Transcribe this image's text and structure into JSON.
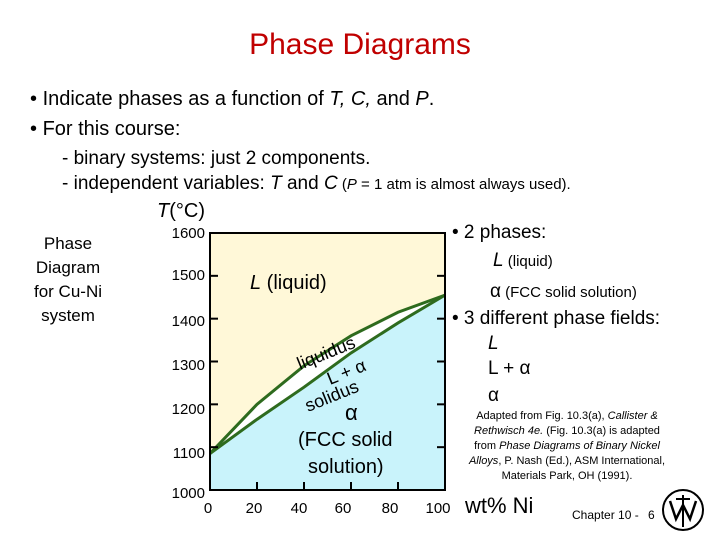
{
  "title": "Phase Diagrams",
  "bullets": [
    {
      "text_before": "Indicate phases as a function of ",
      "vars": "T, C,",
      "text_mid": " and ",
      "var_last": "P",
      "text_after": "."
    },
    {
      "text": "For this course:"
    }
  ],
  "sub1": "- binary systems:  just 2 components.",
  "sub2": {
    "prefix": "- independent variables:  ",
    "v1": "T",
    "mid": " and  ",
    "v2": "C",
    "note_open": "  (",
    "note_var": "P",
    "note_rest": " = 1 atm is almost always used)."
  },
  "side_label": [
    "Phase",
    "Diagram",
    "for Cu-Ni",
    "system"
  ],
  "y_axis_label": {
    "var": "T",
    "unit": "(°C)"
  },
  "y_ticks": [
    "1600",
    "1500",
    "1400",
    "1300",
    "1200",
    "1100",
    "1000"
  ],
  "x_ticks": [
    "0",
    "20",
    "40",
    "60",
    "80",
    "100"
  ],
  "x_axis_label": "wt% Ni",
  "regions": {
    "liquid": {
      "sym": "L",
      "text": " (liquid)"
    },
    "liquidus": "liquidus",
    "two_phase": "L + α",
    "solidus": "solidus",
    "alpha_sym": "α",
    "alpha_text1": "(FCC solid",
    "alpha_text2": "solution)"
  },
  "right_panel": {
    "two_phases": "• 2 phases:",
    "two_L_sym": "L",
    "two_L_text": " (liquid)",
    "two_alpha_sym": "α",
    "two_alpha_text": " (FCC solid solution)",
    "three_fields": "• 3 different phase fields:",
    "field1": "L",
    "field2": "L + α",
    "field3": "α"
  },
  "adapted": {
    "line1": "Adapted from Fig. 10.3(a), ",
    "line1_it": "Callister &",
    "line2_it": "Rethwisch 4e.",
    "line2": " (Fig. 10.3(a) is adapted",
    "line3": "from ",
    "line3_it": "Phase Diagrams of Binary Nickel",
    "line4_it": "Alloys",
    "line4": ", P. Nash (Ed.), ASM International,",
    "line5": "Materials Park, OH (1991)."
  },
  "footer": {
    "chapter": "Chapter 10 -",
    "page": "6"
  },
  "colors": {
    "title": "#c00000",
    "liquid_fill": "#fff8d8",
    "alpha_fill": "#c9f3fb",
    "two_phase_fill": "#ffffff",
    "curve": "#2e6b1e",
    "curve_light": "#b8d8a0"
  },
  "chart_data": {
    "type": "area",
    "xlabel": "wt% Ni",
    "ylabel": "T(°C)",
    "xlim": [
      0,
      100
    ],
    "ylim": [
      1000,
      1600
    ],
    "liquidus": {
      "x": [
        0,
        20,
        40,
        60,
        80,
        100
      ],
      "y": [
        1085,
        1200,
        1290,
        1360,
        1415,
        1455
      ]
    },
    "solidus": {
      "x": [
        0,
        20,
        40,
        60,
        80,
        100
      ],
      "y": [
        1085,
        1165,
        1240,
        1320,
        1390,
        1455
      ]
    }
  }
}
